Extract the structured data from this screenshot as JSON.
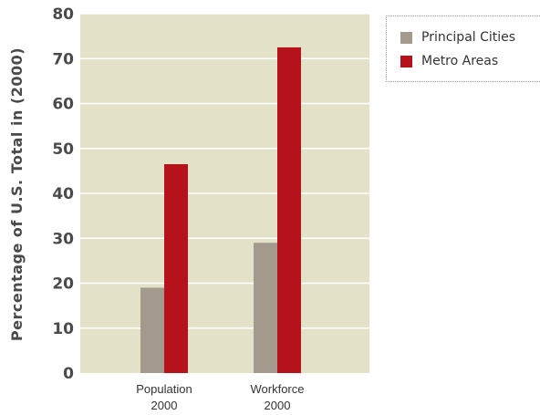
{
  "chart_data": {
    "type": "bar",
    "categories": [
      [
        "Population",
        "2000"
      ],
      [
        "Workforce",
        "2000"
      ]
    ],
    "series": [
      {
        "name": "Principal Cities",
        "values": [
          19,
          29
        ],
        "color": "#a39a8d"
      },
      {
        "name": "Metro Areas",
        "values": [
          46.5,
          72.5
        ],
        "color": "#b5121b"
      }
    ],
    "title": "",
    "xlabel": "",
    "ylabel": "Percentage of U.S. Total in (2000)",
    "ylim": [
      0,
      80
    ],
    "yticks": [
      0,
      10,
      20,
      30,
      40,
      50,
      60,
      70,
      80
    ],
    "grid": true,
    "legend_position": "top-right",
    "plot_background": "#e3e2c8"
  }
}
